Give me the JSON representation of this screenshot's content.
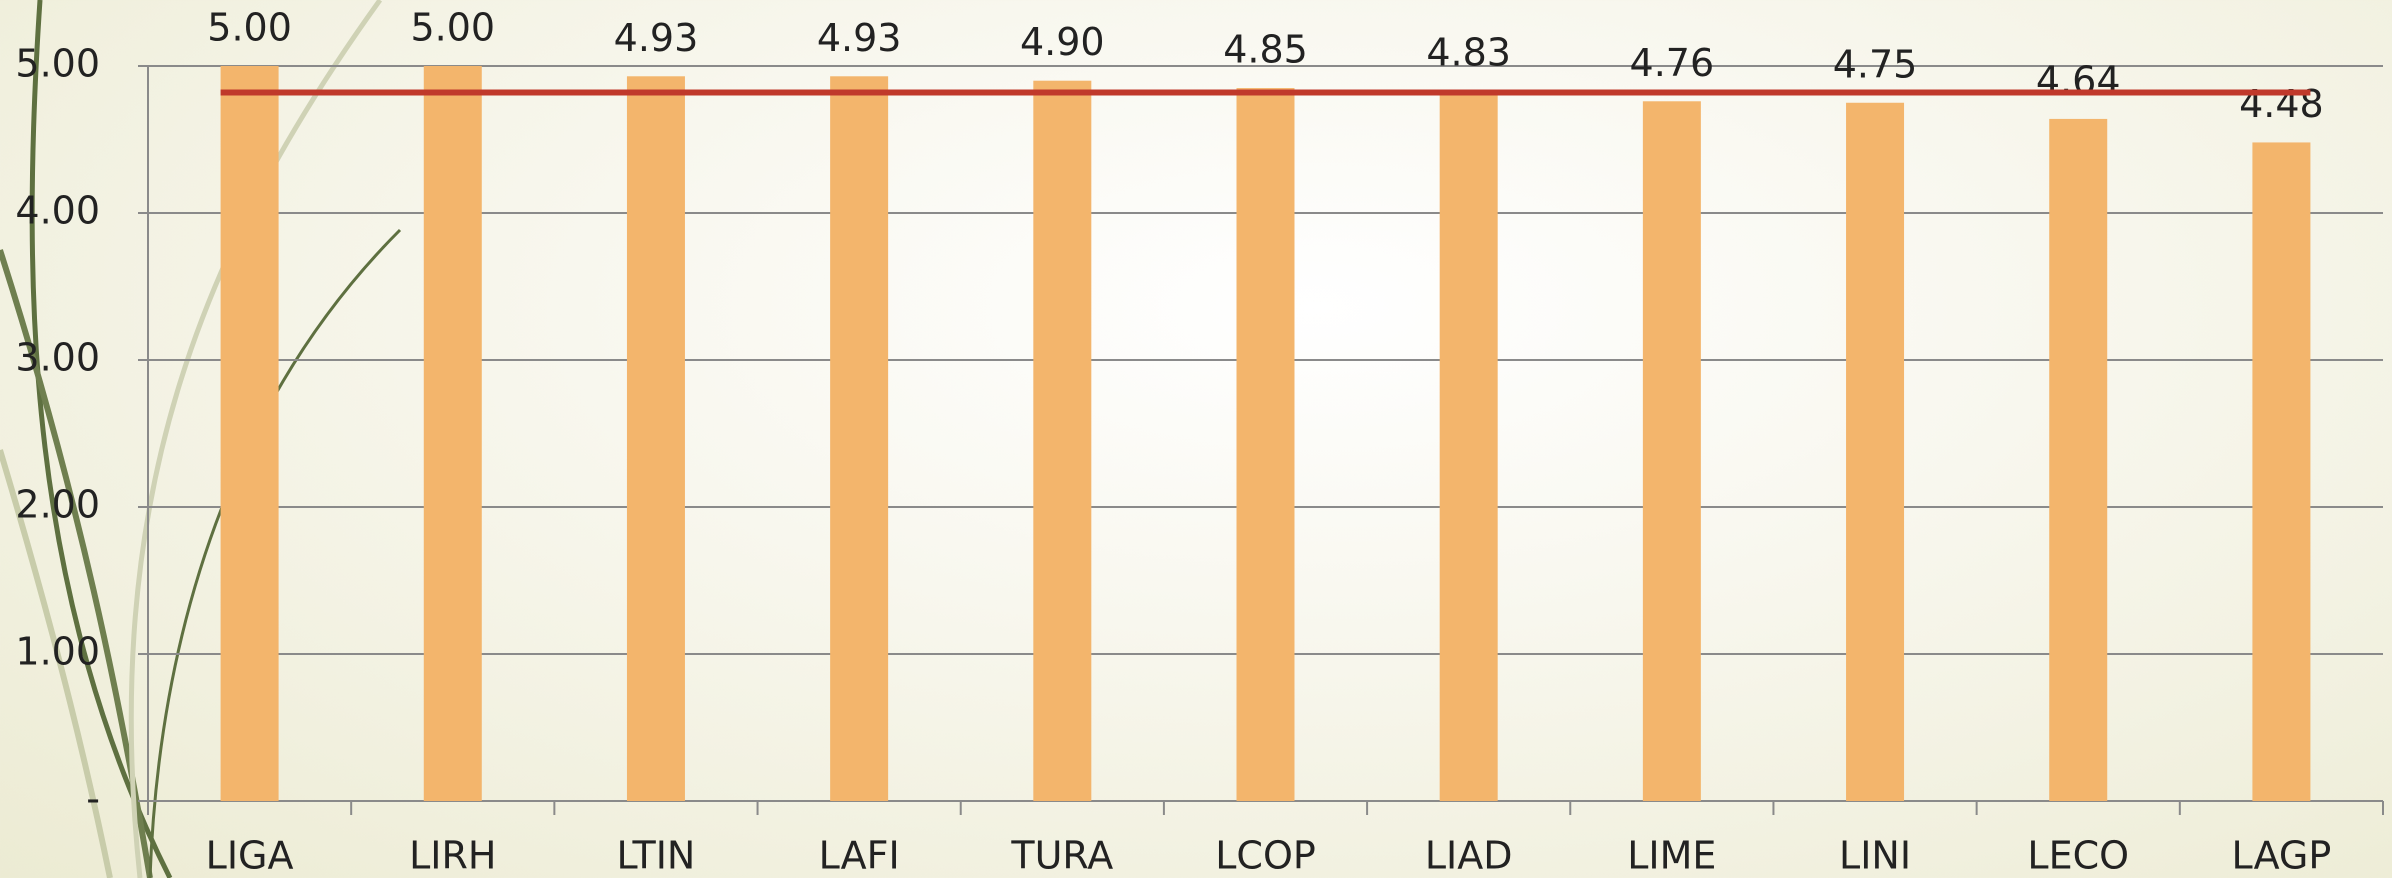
{
  "chart_data": {
    "type": "bar",
    "categories": [
      "LIGA",
      "LIRH",
      "LTIN",
      "LAFI",
      "TURA",
      "LCOP",
      "LIAD",
      "LIME",
      "LINI",
      "LECO",
      "LAGP"
    ],
    "values": [
      5.0,
      5.0,
      4.93,
      4.93,
      4.9,
      4.85,
      4.83,
      4.76,
      4.75,
      4.64,
      4.48
    ],
    "value_labels": [
      "5.00",
      "5.00",
      "4.93",
      "4.93",
      "4.90",
      "4.85",
      "4.83",
      "4.76",
      "4.75",
      "4.64",
      "4.48"
    ],
    "color": "#f3b56c",
    "reference_line": {
      "value": 4.82,
      "color": "#c0392b"
    },
    "ylim": [
      0,
      5
    ],
    "yticks": [
      {
        "value": 0,
        "label": "-"
      },
      {
        "value": 1,
        "label": "1.00"
      },
      {
        "value": 2,
        "label": "2.00"
      },
      {
        "value": 3,
        "label": "3.00"
      },
      {
        "value": 4,
        "label": "4.00"
      },
      {
        "value": 5,
        "label": "5.00"
      }
    ],
    "grid": true
  }
}
